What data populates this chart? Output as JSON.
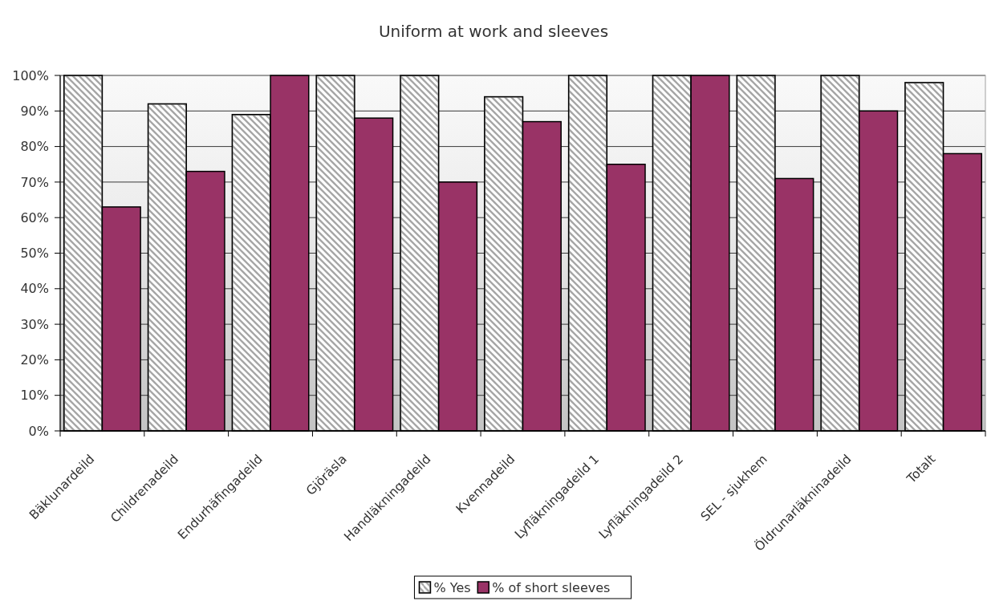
{
  "chart_data": {
    "type": "bar",
    "title": "Uniform at work and sleeves",
    "categories": [
      "Bäklunardeild",
      "Childrenadeild",
      "Endurhäfingadeild",
      "Gjöräsla",
      "Handläkningadeild",
      "Kvennadeild",
      "Lyfläkningadeild 1",
      "Lyfläkningadeild 2",
      "SEL - sjukhem",
      "Öldrunarläkninadeild",
      "Totalt"
    ],
    "series": [
      {
        "name": "% Yes",
        "color": "#a6a6a6",
        "values": [
          100,
          92,
          89,
          100,
          100,
          94,
          100,
          100,
          100,
          100,
          98
        ]
      },
      {
        "name": "% of short sleeves",
        "color": "#993366",
        "values": [
          63,
          73,
          100,
          88,
          70,
          87,
          75,
          100,
          71,
          90,
          78
        ]
      }
    ],
    "ylim": [
      0,
      100
    ],
    "yticks": [
      {
        "value": 0,
        "label": "0%"
      },
      {
        "value": 10,
        "label": "10%"
      },
      {
        "value": 20,
        "label": "20%"
      },
      {
        "value": 30,
        "label": "30%"
      },
      {
        "value": 40,
        "label": "40%"
      },
      {
        "value": 50,
        "label": "50%"
      },
      {
        "value": 60,
        "label": "60%"
      },
      {
        "value": 70,
        "label": "70%"
      },
      {
        "value": 80,
        "label": "80%"
      },
      {
        "value": 90,
        "label": "90%"
      },
      {
        "value": 100,
        "label": "100%"
      }
    ],
    "grid": "y",
    "legend": "bottom"
  }
}
